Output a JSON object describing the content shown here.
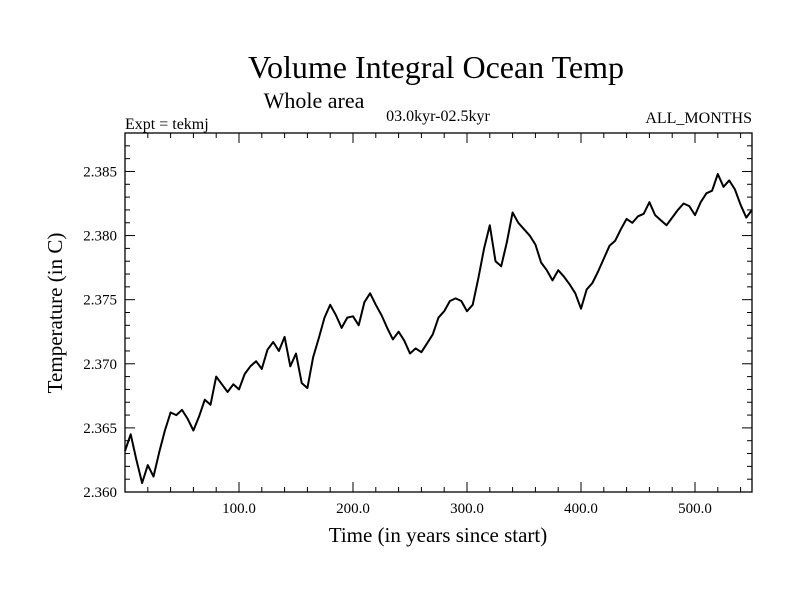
{
  "chart_data": {
    "type": "line",
    "title": "Volume Integral Ocean Temp",
    "subtitle": "Whole area",
    "period_label": "03.0kyr-02.5kyr",
    "experiment_label": "Expt = tekmj",
    "months_label": "ALL_MONTHS",
    "xlabel": "Time (in years since start)",
    "ylabel": "Temperature (in C)",
    "xlim": [
      0,
      550
    ],
    "ylim": [
      2.36,
      2.388
    ],
    "x_ticks": [
      100,
      200,
      300,
      400,
      500
    ],
    "x_tick_labels": [
      "100.0",
      "200.0",
      "300.0",
      "400.0",
      "500.0"
    ],
    "y_ticks": [
      2.36,
      2.365,
      2.37,
      2.375,
      2.38,
      2.385
    ],
    "y_tick_labels": [
      "2.360",
      "2.365",
      "2.370",
      "2.375",
      "2.380",
      "2.385"
    ],
    "grid": false,
    "line_color": "#000000",
    "series": [
      {
        "name": "Temperature",
        "x": [
          0,
          5,
          10,
          15,
          20,
          25,
          30,
          35,
          40,
          45,
          50,
          55,
          60,
          65,
          70,
          75,
          80,
          85,
          90,
          95,
          100,
          105,
          110,
          115,
          120,
          125,
          130,
          135,
          140,
          145,
          150,
          155,
          160,
          165,
          170,
          175,
          180,
          185,
          190,
          195,
          200,
          205,
          210,
          215,
          220,
          225,
          230,
          235,
          240,
          245,
          250,
          255,
          260,
          265,
          270,
          275,
          280,
          285,
          290,
          295,
          300,
          305,
          310,
          315,
          320,
          325,
          330,
          335,
          340,
          345,
          350,
          355,
          360,
          365,
          370,
          375,
          380,
          385,
          390,
          395,
          400,
          405,
          410,
          415,
          420,
          425,
          430,
          435,
          440,
          445,
          450,
          455,
          460,
          465,
          470,
          475,
          480,
          485,
          490,
          495,
          500,
          505,
          510,
          515,
          520,
          525,
          530,
          535,
          540,
          545,
          550
        ],
        "y": [
          2.3632,
          2.3645,
          2.3625,
          2.3607,
          2.3621,
          2.3612,
          2.3631,
          2.3648,
          2.3662,
          2.366,
          2.3664,
          2.3657,
          2.3648,
          2.3659,
          2.3672,
          2.3668,
          2.369,
          2.3684,
          2.3678,
          2.3684,
          2.368,
          2.3692,
          2.3698,
          2.3702,
          2.3696,
          2.3711,
          2.3717,
          2.371,
          2.3721,
          2.3698,
          2.3708,
          2.3685,
          2.3681,
          2.3705,
          2.372,
          2.3736,
          2.3746,
          2.3738,
          2.3728,
          2.3736,
          2.3737,
          2.373,
          2.3748,
          2.3755,
          2.3746,
          2.3738,
          2.3728,
          2.3719,
          2.3725,
          2.3718,
          2.3708,
          2.3712,
          2.3709,
          2.3716,
          2.3723,
          2.3736,
          2.3741,
          2.3749,
          2.3751,
          2.3749,
          2.3741,
          2.3746,
          2.3767,
          2.379,
          2.3808,
          2.378,
          2.3776,
          2.3795,
          2.3818,
          2.381,
          2.3805,
          2.38,
          2.3793,
          2.3779,
          2.3773,
          2.3765,
          2.3773,
          2.3768,
          2.3762,
          2.3755,
          2.3743,
          2.3758,
          2.3763,
          2.3772,
          2.3782,
          2.3792,
          2.3796,
          2.3805,
          2.3813,
          2.381,
          2.3815,
          2.3817,
          2.3826,
          2.3816,
          2.3812,
          2.3808,
          2.3814,
          2.382,
          2.3825,
          2.3823,
          2.3816,
          2.3826,
          2.3833,
          2.3835,
          2.3848,
          2.3838,
          2.3843,
          2.3836,
          2.3824,
          2.3814,
          2.382
        ]
      }
    ]
  }
}
